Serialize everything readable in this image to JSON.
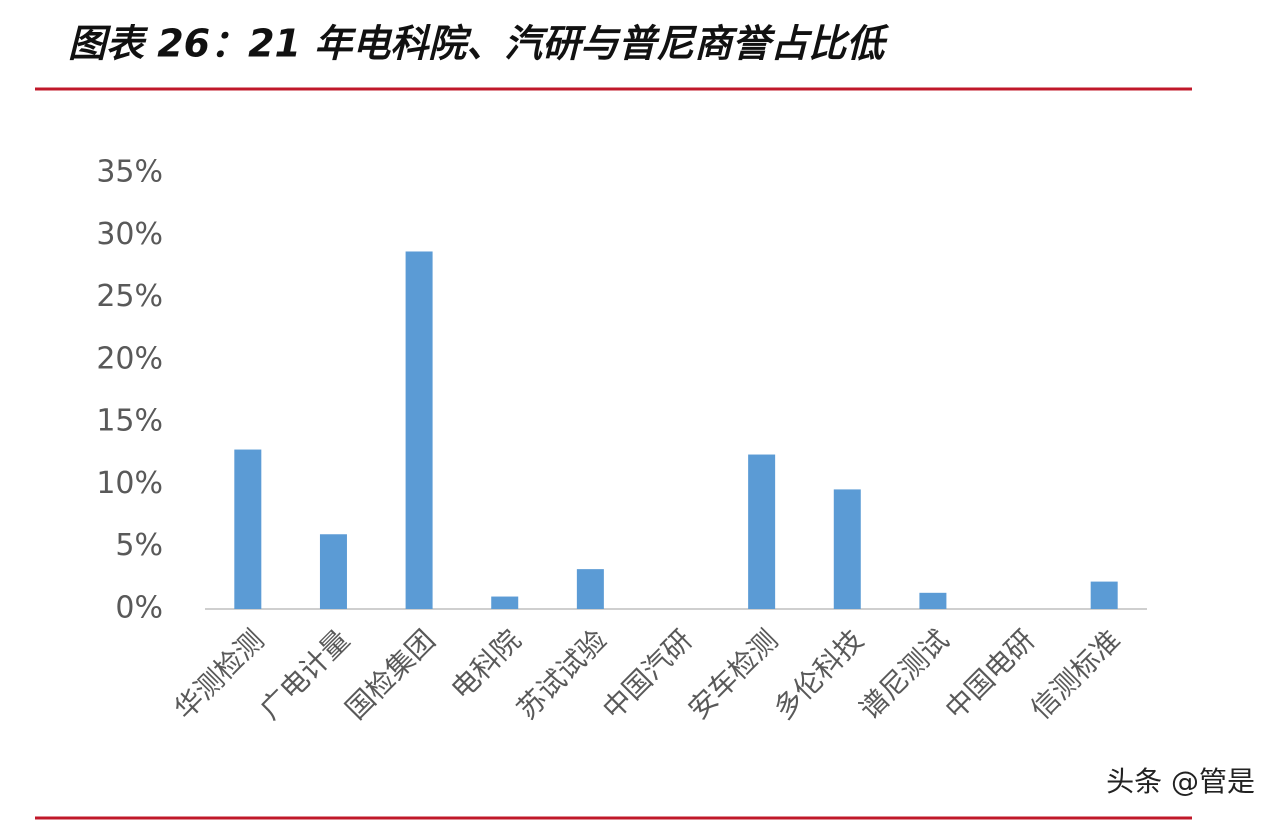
{
  "chart_data": {
    "type": "bar",
    "title": "图表 26：21 年电科院、汽研与普尼商誉占比低",
    "categories": [
      "华测检测",
      "广电计量",
      "国检集团",
      "电科院",
      "苏试试验",
      "中国汽研",
      "安车检测",
      "多伦科技",
      "谱尼测试",
      "中国电研",
      "信测标准"
    ],
    "values": [
      12.8,
      6.0,
      28.7,
      1.0,
      3.2,
      0,
      12.4,
      9.6,
      1.3,
      0,
      2.2
    ],
    "color": "#5b9bd5",
    "ylim": [
      0,
      35
    ],
    "yticks": [
      {
        "value": 0,
        "label": "0%"
      },
      {
        "value": 5,
        "label": "5%"
      },
      {
        "value": 10,
        "label": "10%"
      },
      {
        "value": 15,
        "label": "15%"
      },
      {
        "value": 20,
        "label": "20%"
      },
      {
        "value": 25,
        "label": "25%"
      },
      {
        "value": 30,
        "label": "30%"
      },
      {
        "value": 35,
        "label": "35%"
      }
    ],
    "grid": false,
    "watermark": "头条 @管是"
  }
}
